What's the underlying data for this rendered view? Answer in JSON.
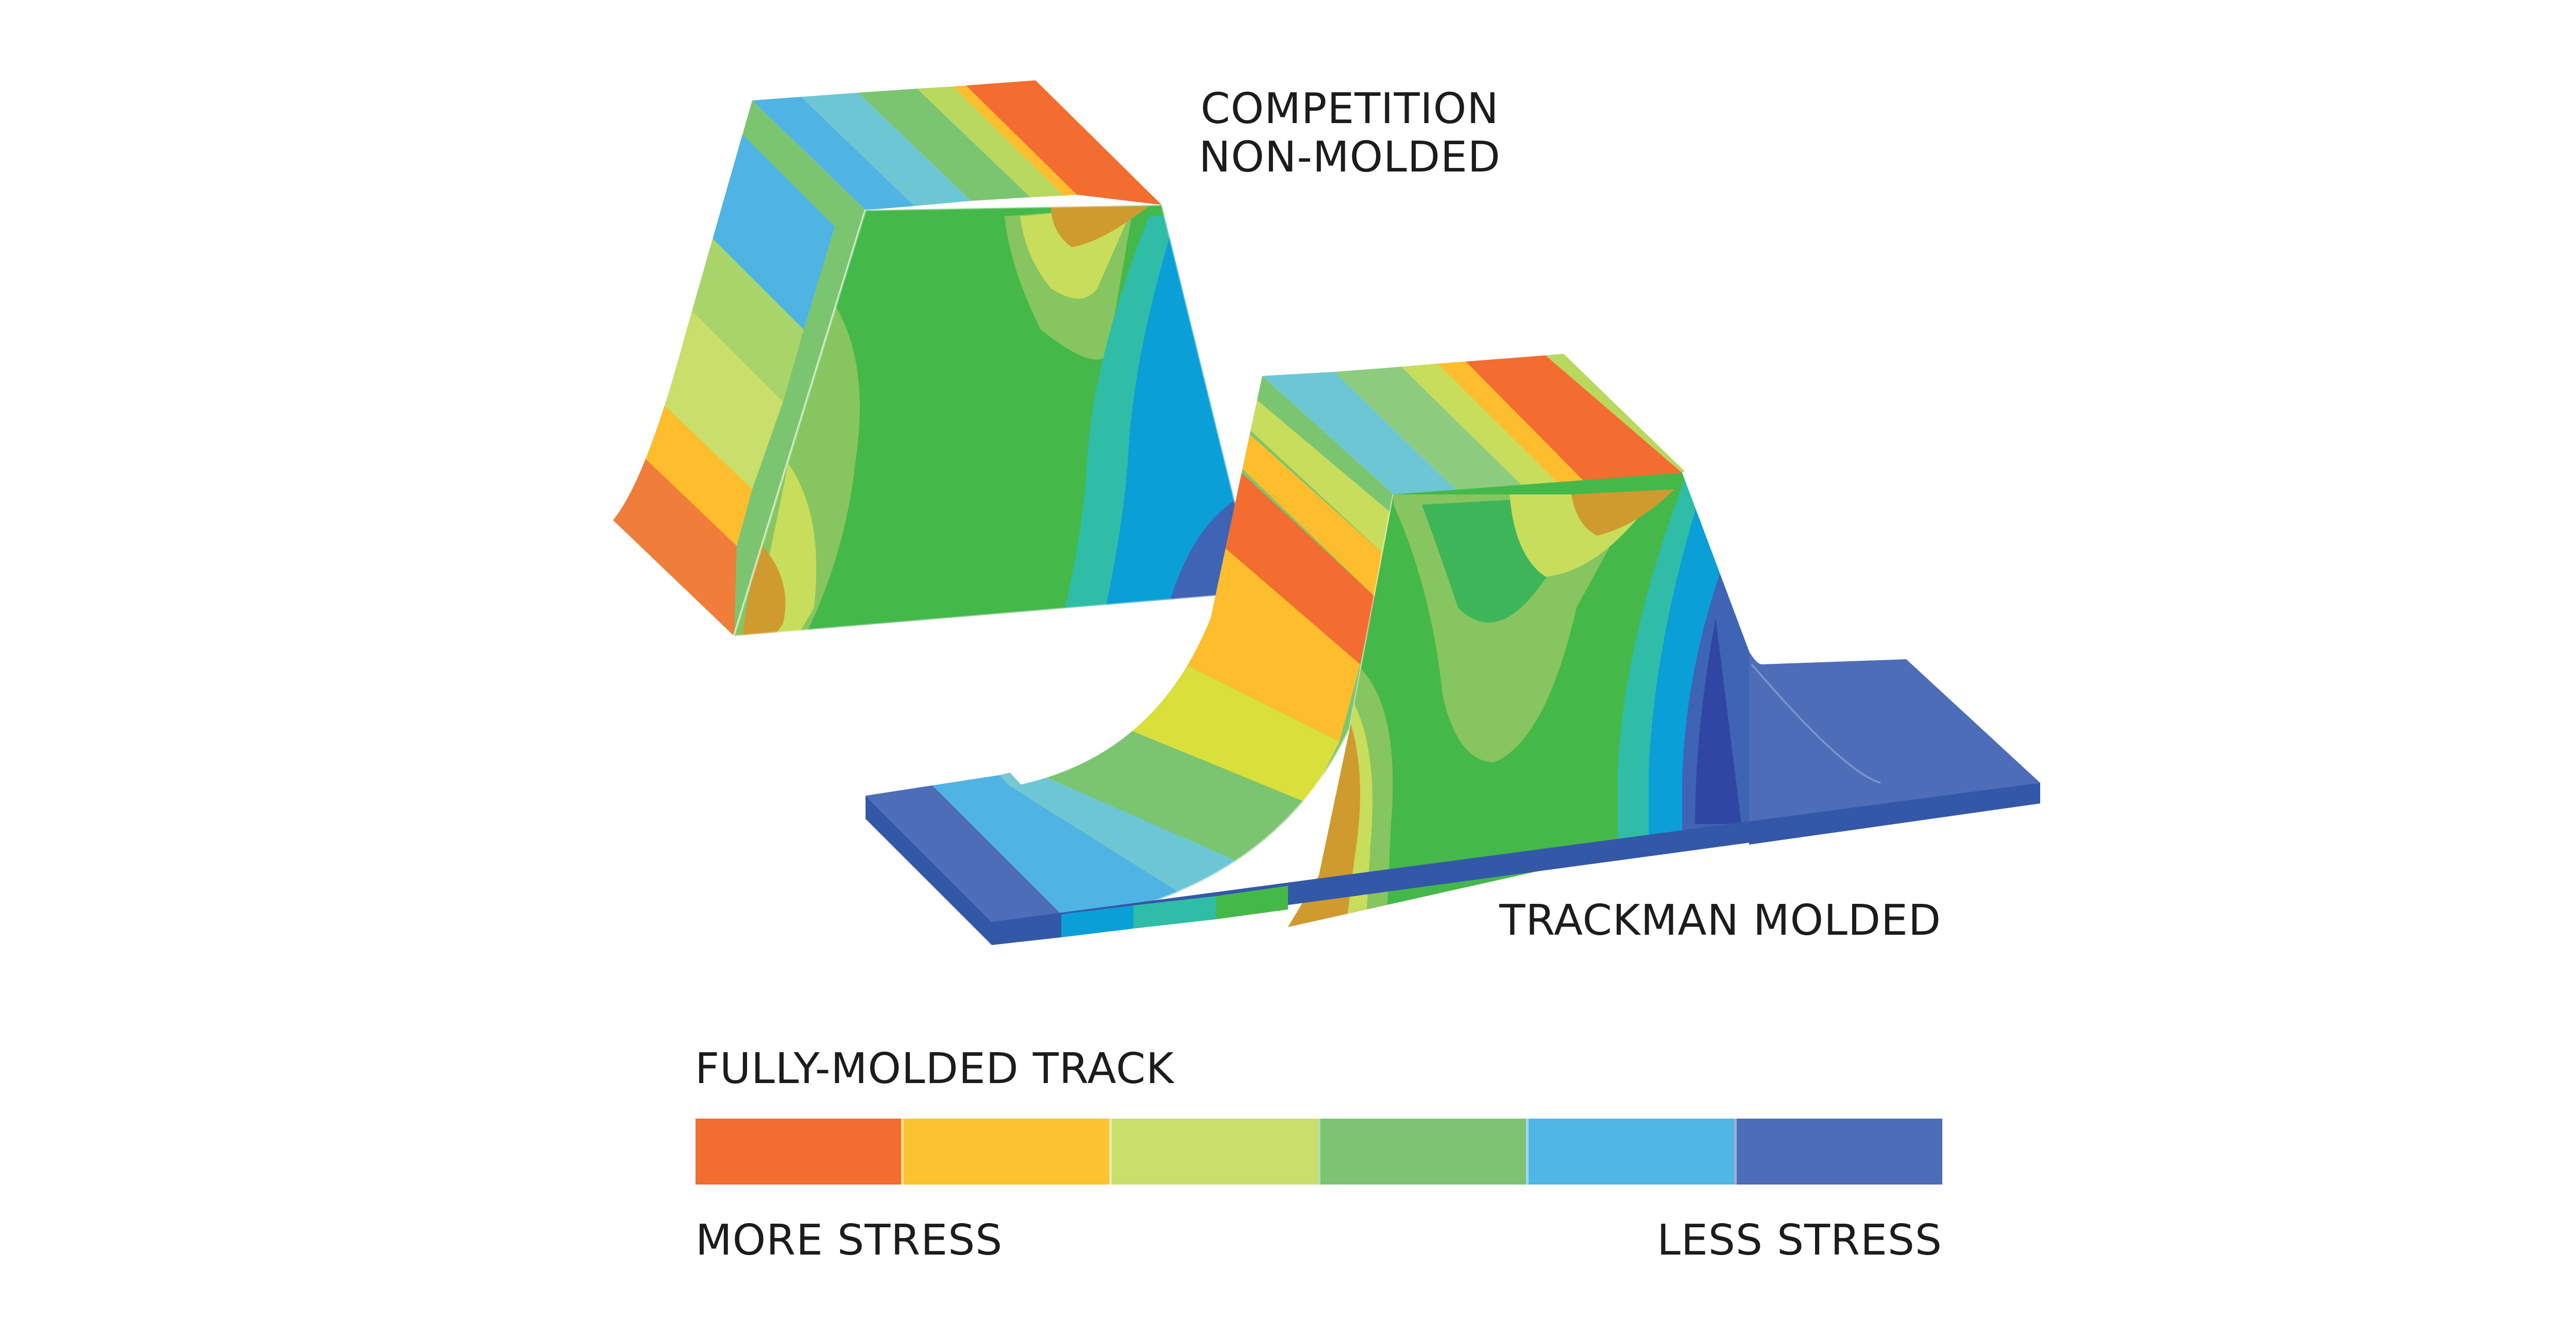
{
  "labels": {
    "competition_line1": "COMPETITION",
    "competition_line2": "NON-MOLDED",
    "trackman": "TRACKMAN MOLDED"
  },
  "legend": {
    "title": "FULLY-MOLDED TRACK",
    "more": "MORE STRESS",
    "less": "LESS STRESS",
    "colors": [
      "#f26d2f",
      "#fdc331",
      "#c8df6c",
      "#7cc473",
      "#4fb6e6",
      "#4d6db8"
    ]
  },
  "palette": {
    "red": "#d9532a",
    "orange": "#f37a30",
    "yellow": "#fdbd2c",
    "lime": "#c8dd5b",
    "light_green": "#86c55f",
    "green": "#45b84a",
    "teal": "#2fbda8",
    "cyan": "#0a9fd6",
    "blue": "#3f63b5",
    "indigo": "#2f47a2",
    "mustard": "#cf9a2e"
  }
}
